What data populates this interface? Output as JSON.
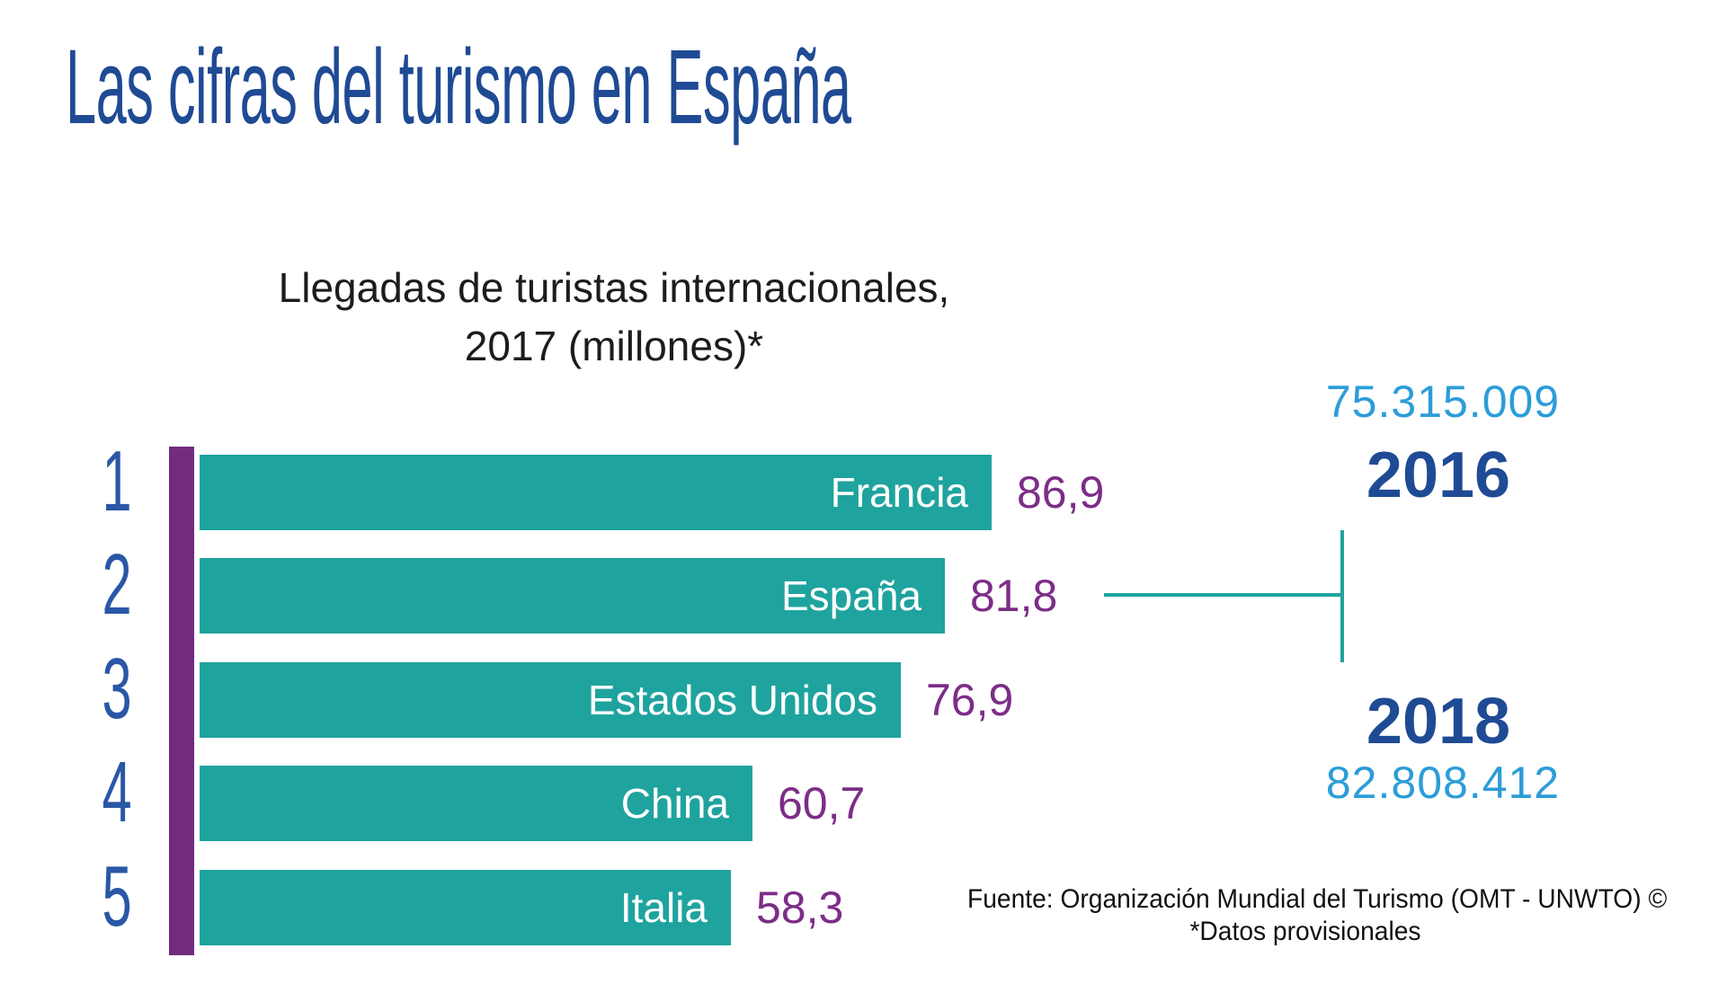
{
  "page": {
    "title": "Las cifras del turismo en España"
  },
  "chart": {
    "title_line1": "Llegadas de turistas internacionales,",
    "title_line2": "2017 (millones)*",
    "rows": [
      {
        "rank": "1",
        "country": "Francia",
        "value": "86,9",
        "value_num": 86.9
      },
      {
        "rank": "2",
        "country": "España",
        "value": "81,8",
        "value_num": 81.8
      },
      {
        "rank": "3",
        "country": "Estados Unidos",
        "value": "76,9",
        "value_num": 76.9
      },
      {
        "rank": "4",
        "country": "China",
        "value": "60,7",
        "value_num": 60.7
      },
      {
        "rank": "5",
        "country": "Italia",
        "value": "58,3",
        "value_num": 58.3
      }
    ]
  },
  "annotation": {
    "arrivals_2016": "75.315.009",
    "year_2016": "2016",
    "year_2018": "2018",
    "arrivals_2018": "82.808.412"
  },
  "source": {
    "line1": "Fuente: Organización Mundial del Turismo (OMT - UNWTO) ©",
    "line2": "*Datos provisionales"
  },
  "colors": {
    "navy": "#1F4A94",
    "rank_blue": "#2A57A6",
    "teal": "#1FA39E",
    "axis_purple": "#722B7E",
    "value_purple": "#7C2D87",
    "light_blue": "#2B9DD8",
    "text_dark": "#1c1c1c"
  },
  "chart_data": {
    "type": "bar",
    "orientation": "horizontal",
    "title": "Llegadas de turistas internacionales, 2017 (millones)*",
    "categories": [
      "Francia",
      "España",
      "Estados Unidos",
      "China",
      "Italia"
    ],
    "ranks": [
      1,
      2,
      3,
      4,
      5
    ],
    "values": [
      86.9,
      81.8,
      76.9,
      60.7,
      58.3
    ],
    "xlim": [
      0,
      90
    ],
    "value_labels": [
      "86,9",
      "81,8",
      "76,9",
      "60,7",
      "58,3"
    ],
    "labels_inside_bars": true,
    "annotations": [
      {
        "year": "2016",
        "international_arrivals_spain": "75.315.009",
        "linked_category": "España"
      },
      {
        "year": "2018",
        "international_arrivals_spain": "82.808.412",
        "linked_category": "España"
      }
    ],
    "source": "Fuente: Organización Mundial del Turismo (OMT - UNWTO) © *Datos provisionales"
  }
}
